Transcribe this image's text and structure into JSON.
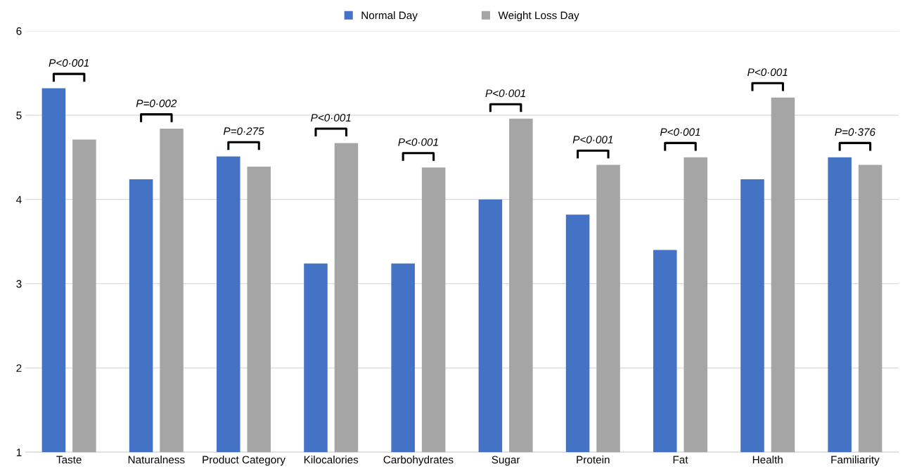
{
  "chart_data": {
    "type": "bar",
    "categories": [
      "Taste",
      "Naturalness",
      "Product Category",
      "Kilocalories",
      "Carbohydrates",
      "Sugar",
      "Protein",
      "Fat",
      "Health",
      "Familiarity"
    ],
    "series": [
      {
        "name": "Normal Day",
        "color": "#4472c4",
        "values": [
          5.32,
          4.24,
          4.51,
          3.24,
          3.24,
          4.0,
          3.82,
          3.4,
          4.24,
          4.5
        ]
      },
      {
        "name": "Weight Loss Day",
        "color": "#a5a5a5",
        "values": [
          4.71,
          4.84,
          4.39,
          4.67,
          4.38,
          4.96,
          4.41,
          4.5,
          5.21,
          4.41
        ]
      }
    ],
    "ylim": [
      1,
      6
    ],
    "yticks": [
      1,
      2,
      3,
      4,
      5,
      6
    ],
    "grid": "y",
    "legend": "top",
    "annotations": [
      "P<0·001",
      "P=0·002",
      "P=0·275",
      "P<0·001",
      "P<0·001",
      "P<0·001",
      "P<0·001",
      "P<0·001",
      "P<0·001",
      "P=0·376"
    ]
  }
}
